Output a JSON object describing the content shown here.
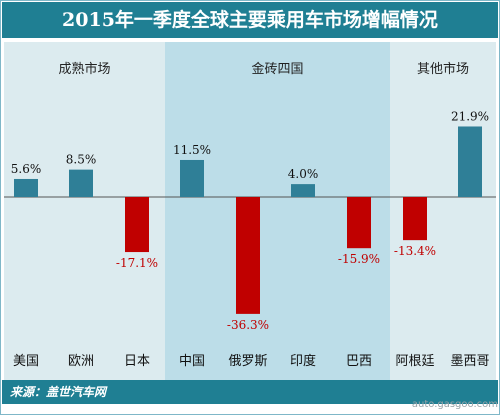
{
  "title": "2015年一季度全球主要乘用车市场增幅情况",
  "groups": {
    "mature": "成熟市场",
    "bric": "金砖四国",
    "other": "其他市场"
  },
  "source": "来源：盖世汽车网",
  "watermark": "auto.gasgoo.com",
  "colors": {
    "positive": "#2f7f97",
    "negative": "#c00000",
    "header": "#1f7f93"
  },
  "chart_data": {
    "type": "bar",
    "categories": [
      "美国",
      "欧洲",
      "日本",
      "中国",
      "俄罗斯",
      "印度",
      "巴西",
      "阿根廷",
      "墨西哥"
    ],
    "values": [
      5.6,
      8.5,
      -17.1,
      11.5,
      -36.3,
      4.0,
      -15.9,
      -13.4,
      21.9
    ],
    "data_labels": [
      "5.6%",
      "8.5%",
      "-17.1%",
      "11.5%",
      "-36.3%",
      "4.0%",
      "-15.9%",
      "-13.4%",
      "21.9%"
    ],
    "category_groups": [
      "成熟市场",
      "成熟市场",
      "成熟市场",
      "金砖四国",
      "金砖四国",
      "金砖四国",
      "金砖四国",
      "其他市场",
      "其他市场"
    ],
    "ylim": [
      -40,
      25
    ],
    "grid": false,
    "legend": "none"
  }
}
